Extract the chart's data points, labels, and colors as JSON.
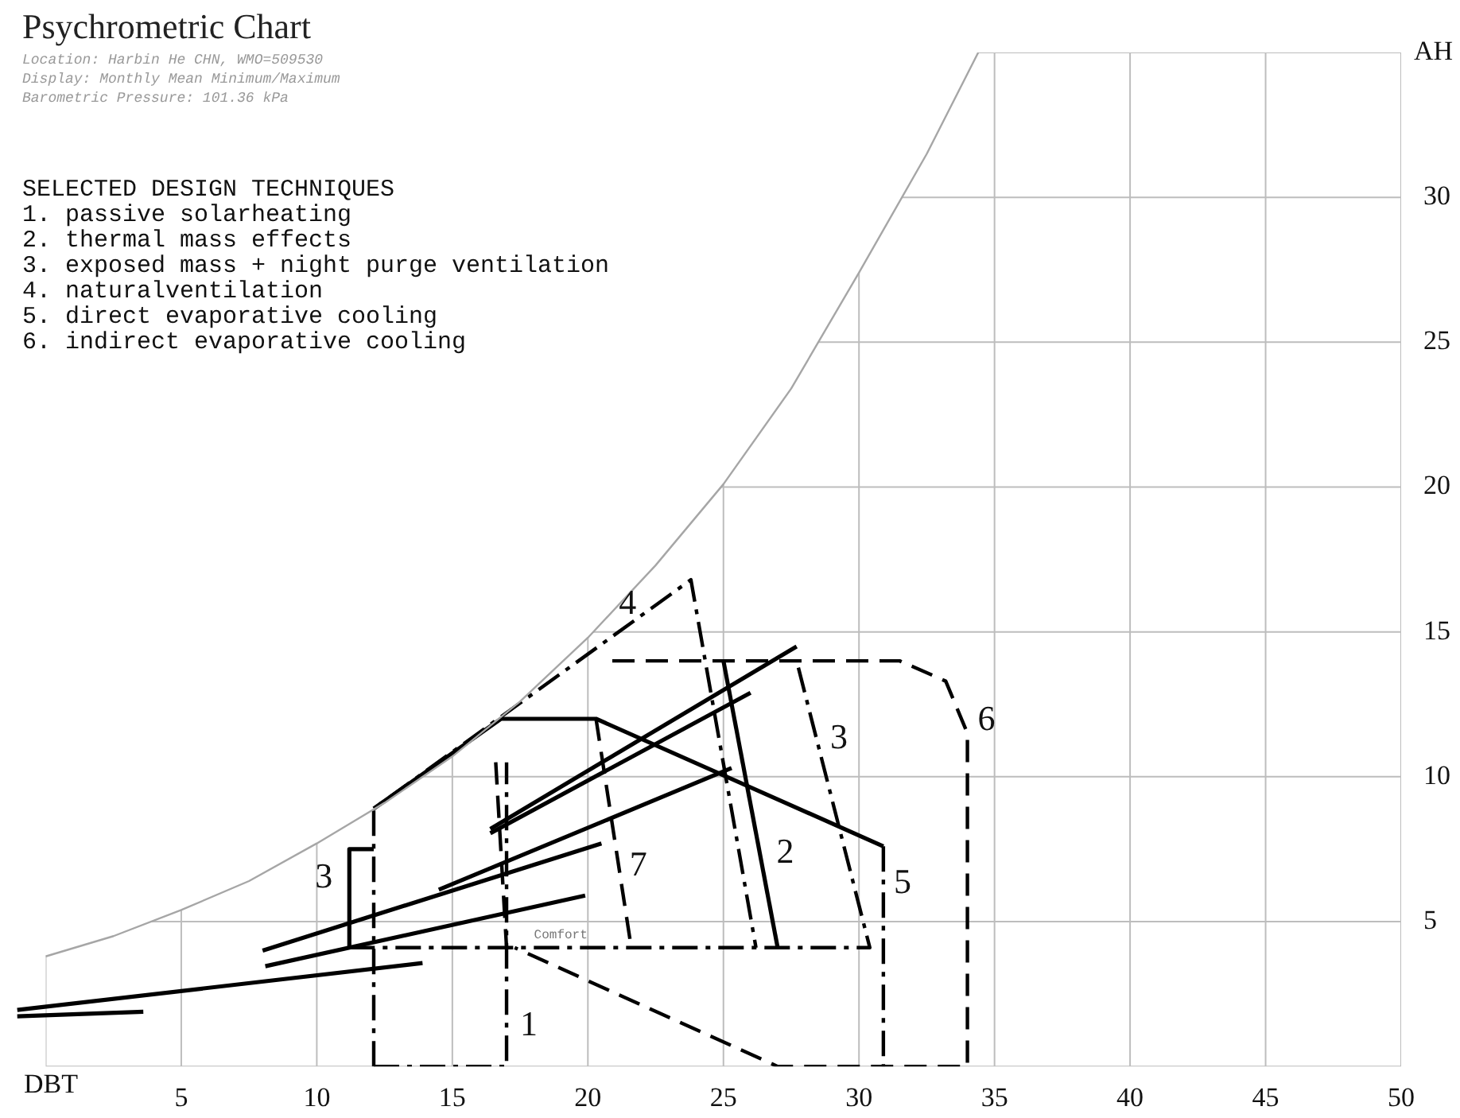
{
  "chart_data": {
    "type": "line",
    "title": "Psychrometric Chart",
    "subtitle": "Location: Harbin He CHN, WMO=509530\nDisplay: Monthly Mean Minimum/Maximum\nBarometric Pressure: 101.36 kPa",
    "xlabel": "DBT",
    "ylabel": "AH",
    "xlim": [
      -1.1,
      50
    ],
    "xticks": [
      {
        "value": 0,
        "label": null
      },
      5,
      10,
      15,
      20,
      25,
      30,
      35,
      40,
      45,
      50
    ],
    "ylim": [
      0,
      35
    ],
    "yticks": [
      {
        "value": 0,
        "label": null
      },
      5,
      10,
      15,
      20,
      25,
      30,
      {
        "value": 35,
        "label": null
      }
    ],
    "grid": true,
    "legend": false,
    "marker": "none",
    "series": [
      {
        "color": "#a6a6a6",
        "line_style": "solid",
        "x": [
          0,
          2.5,
          5,
          7.5,
          10,
          12.5,
          15,
          17.5,
          20,
          22.5,
          25,
          27.5,
          30,
          32.5,
          34.4
        ],
        "values": [
          3.8,
          4.5,
          5.4,
          6.4,
          7.7,
          9.1,
          10.7,
          12.6,
          14.8,
          17.3,
          20.1,
          23.4,
          27.4,
          31.5,
          35
        ]
      },
      {
        "color": "#000000",
        "line_style": "dashdot",
        "x": [
          12.1,
          17.0,
          17.0
        ],
        "values": [
          0,
          0,
          10.5
        ]
      },
      {
        "color": "#000000",
        "line_style": "dashdot",
        "x": [
          12.1,
          12.1,
          23.8,
          26.2
        ],
        "values": [
          0,
          8.9,
          16.8,
          4.1
        ]
      },
      {
        "color": "#000000",
        "line_style": "dashdot",
        "x": [
          11.2,
          30.4,
          27.7
        ],
        "values": [
          4.1,
          4.1,
          14.0
        ]
      },
      {
        "color": "#000000",
        "line_style": "dashdot",
        "x": [
          30.9,
          30.9
        ],
        "values": [
          7.6,
          0
        ]
      },
      {
        "color": "#000000",
        "line_style": "solid",
        "x": [
          11.2,
          11.2,
          12.1
        ],
        "values": [
          4.1,
          7.5,
          7.5
        ]
      },
      {
        "color": "#000000",
        "line_style": "solid",
        "x": [
          12.1,
          16.8,
          20.3,
          30.9
        ],
        "values": [
          8.9,
          12.0,
          12.0,
          7.6
        ]
      },
      {
        "color": "#000000",
        "line_style": "solid",
        "x": [
          25.0,
          27.0
        ],
        "values": [
          14.0,
          4.1
        ]
      },
      {
        "color": "#000000",
        "line_style": "dashed",
        "x": [
          20.9,
          31.5,
          33.2,
          34.0,
          34.0,
          27.0,
          17.3
        ],
        "values": [
          14.0,
          14.0,
          13.3,
          11.5,
          0,
          0,
          4.1
        ]
      },
      {
        "color": "#000000",
        "line_style": "dashed",
        "x": [
          16.6,
          17.0
        ],
        "values": [
          10.5,
          4.1
        ]
      },
      {
        "color": "#000000",
        "line_style": "dashed",
        "x": [
          20.3,
          21.6
        ],
        "values": [
          12.0,
          4.1
        ]
      },
      {
        "color": "#000000",
        "line_style": "solid",
        "x": [
          -1.05,
          3.6
        ],
        "values": [
          1.73,
          1.89
        ]
      },
      {
        "color": "#000000",
        "line_style": "solid",
        "x": [
          -1.05,
          13.9
        ],
        "values": [
          1.95,
          3.57
        ]
      },
      {
        "color": "#000000",
        "line_style": "solid",
        "x": [
          8.1,
          19.9
        ],
        "values": [
          3.46,
          5.9
        ]
      },
      {
        "color": "#000000",
        "line_style": "solid",
        "x": [
          8.0,
          20.5
        ],
        "values": [
          4.0,
          7.7
        ]
      },
      {
        "color": "#000000",
        "line_style": "solid",
        "x": [
          14.5,
          25.3
        ],
        "values": [
          6.1,
          10.3
        ]
      },
      {
        "color": "#000000",
        "line_style": "solid",
        "x": [
          16.4,
          26.0
        ],
        "values": [
          8.05,
          12.9
        ]
      },
      {
        "color": "#000000",
        "line_style": "solid",
        "x": [
          16.4,
          27.7
        ],
        "values": [
          8.2,
          14.5
        ]
      }
    ],
    "annotations": [
      "SELECTED DESIGN TECHNIQUES",
      "1.  passive solarheating",
      "2.  thermal mass effects",
      "3.  exposed mass + night purge ventilation",
      "4.  naturalventilation",
      "5.  direct evaporative cooling",
      "6.  indirect evaporative cooling",
      {
        "text": "1",
        "x": 17.0,
        "y": 1.4
      },
      {
        "text": "2",
        "x": 26.34,
        "y": 7.35
      },
      {
        "text": "3",
        "x": 11.2,
        "y": 6.5
      },
      {
        "text": "3",
        "x": 28.44,
        "y": 11.3
      },
      {
        "text": "4",
        "x": 21.7,
        "y": 15.4
      },
      {
        "text": "5",
        "x": 30.9,
        "y": 6.3
      },
      {
        "text": "6",
        "x": 34.0,
        "y": 11.5
      },
      {
        "text": "7",
        "x": 21.16,
        "y": 6.9
      },
      {
        "text": "Comfort",
        "x": 19.0,
        "y": 4.1
      }
    ]
  }
}
